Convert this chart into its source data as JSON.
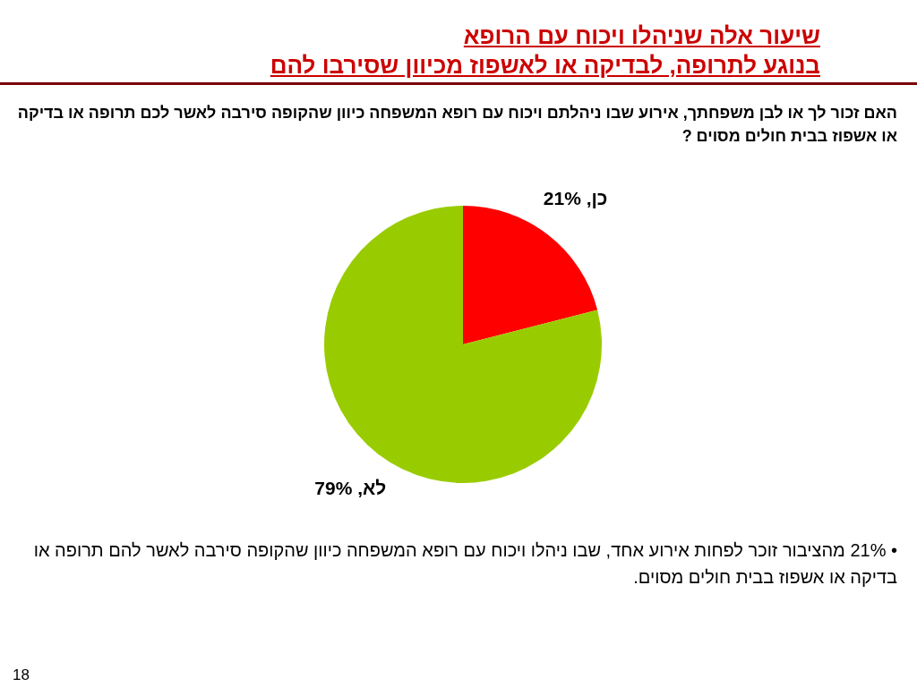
{
  "chart_data": {
    "type": "pie",
    "title": "שיעור אלה שניהלו ויכוח עם הרופא\nבנוגע לתרופה, לבדיקה או לאשפוז מכיוון שסירבו להם",
    "subtitle": "האם זכור לך או לבן משפחתך, אירוע שבו ניהלתם ויכוח עם רופא המשפחה כיוון שהקופה סירבה לאשר לכם תרופה או בדיקה או אשפוז בבית חולים מסוים ?",
    "categories": [
      "כן",
      "לא"
    ],
    "values": [
      21,
      79
    ],
    "colors": [
      "#ff0000",
      "#99cc00"
    ],
    "value_labels": [
      "21%",
      "79%"
    ],
    "annotations": [
      "• 21% מהציבור זוכר לפחות אירוע אחד, שבו ניהלו ויכוח עם רופא המשפחה כיוון שהקופה סירבה לאשר להם תרופה או בדיקה או אשפוז בבית חולים מסוים.",
      "18"
    ]
  }
}
